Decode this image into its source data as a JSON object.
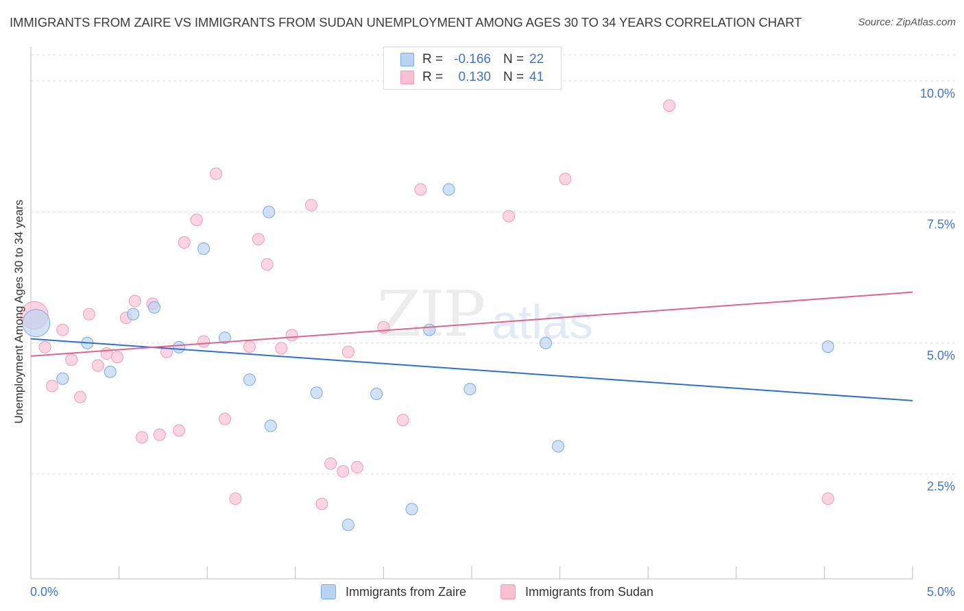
{
  "title": "IMMIGRANTS FROM ZAIRE VS IMMIGRANTS FROM SUDAN UNEMPLOYMENT AMONG AGES 30 TO 34 YEARS CORRELATION CHART",
  "source": "Source: ZipAtlas.com",
  "watermark": {
    "zip": "ZIP",
    "atlas": "atlas"
  },
  "legend": {
    "r_label": "R =",
    "n_label": "N =",
    "series": [
      {
        "name": "Immigrants from Zaire",
        "r": "-0.166",
        "n": "22"
      },
      {
        "name": "Immigrants from Sudan",
        "r": "0.130",
        "n": "41"
      }
    ]
  },
  "colors": {
    "zaire_fill": "#b8d3f3",
    "zaire_stroke": "#7aa8e0",
    "zaire_line": "#2d6fcf",
    "sudan_fill": "#f9c0d2",
    "sudan_stroke": "#ef9ab6",
    "sudan_line": "#e0628e",
    "axis_label": "#3f74c9",
    "grid": "#dddddd"
  },
  "chart_data": {
    "type": "scatter",
    "title": "IMMIGRANTS FROM ZAIRE VS IMMIGRANTS FROM SUDAN UNEMPLOYMENT AMONG AGES 30 TO 34 YEARS CORRELATION CHART",
    "xlabel": "",
    "ylabel": "Unemployment Among Ages 30 to 34 years",
    "xlim": [
      0,
      5.0
    ],
    "ylim": [
      0.5,
      10.5
    ],
    "x_tick_labels": [
      "0.0%",
      "5.0%"
    ],
    "y_ticks": [
      2.5,
      5.0,
      7.5,
      10.0
    ],
    "y_tick_labels": [
      "2.5%",
      "5.0%",
      "7.5%",
      "10.0%"
    ],
    "series": [
      {
        "name": "Immigrants from Zaire",
        "trend": [
          [
            0.0,
            5.08
          ],
          [
            5.0,
            3.9
          ]
        ],
        "points": [
          {
            "x": 0.03,
            "y": 5.38,
            "big": true
          },
          {
            "x": 0.18,
            "y": 4.32
          },
          {
            "x": 0.32,
            "y": 5.0
          },
          {
            "x": 0.45,
            "y": 4.45
          },
          {
            "x": 0.58,
            "y": 5.55
          },
          {
            "x": 0.7,
            "y": 5.68
          },
          {
            "x": 0.84,
            "y": 4.92
          },
          {
            "x": 0.98,
            "y": 6.8
          },
          {
            "x": 1.1,
            "y": 5.1
          },
          {
            "x": 1.24,
            "y": 4.3
          },
          {
            "x": 1.35,
            "y": 7.5
          },
          {
            "x": 1.36,
            "y": 3.42
          },
          {
            "x": 1.62,
            "y": 4.05
          },
          {
            "x": 1.8,
            "y": 1.53
          },
          {
            "x": 1.96,
            "y": 4.03
          },
          {
            "x": 2.16,
            "y": 1.83
          },
          {
            "x": 2.26,
            "y": 5.25
          },
          {
            "x": 2.37,
            "y": 7.93
          },
          {
            "x": 2.49,
            "y": 4.12
          },
          {
            "x": 2.92,
            "y": 5.0
          },
          {
            "x": 2.99,
            "y": 3.03
          },
          {
            "x": 4.52,
            "y": 4.93
          }
        ]
      },
      {
        "name": "Immigrants from Sudan",
        "trend": [
          [
            0.0,
            4.75
          ],
          [
            5.0,
            5.97
          ]
        ],
        "points": [
          {
            "x": 0.02,
            "y": 5.53,
            "big": true
          },
          {
            "x": 0.08,
            "y": 4.92
          },
          {
            "x": 0.12,
            "y": 4.18
          },
          {
            "x": 0.18,
            "y": 5.25
          },
          {
            "x": 0.23,
            "y": 4.68
          },
          {
            "x": 0.28,
            "y": 3.97
          },
          {
            "x": 0.33,
            "y": 5.55
          },
          {
            "x": 0.38,
            "y": 4.57
          },
          {
            "x": 0.43,
            "y": 4.8
          },
          {
            "x": 0.49,
            "y": 4.73
          },
          {
            "x": 0.54,
            "y": 5.48
          },
          {
            "x": 0.59,
            "y": 5.8
          },
          {
            "x": 0.63,
            "y": 3.2
          },
          {
            "x": 0.69,
            "y": 5.75
          },
          {
            "x": 0.73,
            "y": 3.25
          },
          {
            "x": 0.77,
            "y": 4.83
          },
          {
            "x": 0.84,
            "y": 3.33
          },
          {
            "x": 0.87,
            "y": 6.92
          },
          {
            "x": 0.94,
            "y": 7.35
          },
          {
            "x": 0.98,
            "y": 5.03
          },
          {
            "x": 1.05,
            "y": 8.23
          },
          {
            "x": 1.1,
            "y": 3.55
          },
          {
            "x": 1.16,
            "y": 2.03
          },
          {
            "x": 1.24,
            "y": 4.93
          },
          {
            "x": 1.29,
            "y": 6.98
          },
          {
            "x": 1.34,
            "y": 6.5
          },
          {
            "x": 1.42,
            "y": 4.9
          },
          {
            "x": 1.48,
            "y": 5.15
          },
          {
            "x": 1.59,
            "y": 7.63
          },
          {
            "x": 1.65,
            "y": 1.93
          },
          {
            "x": 1.7,
            "y": 2.7
          },
          {
            "x": 1.77,
            "y": 2.55
          },
          {
            "x": 1.8,
            "y": 4.83
          },
          {
            "x": 1.85,
            "y": 2.63
          },
          {
            "x": 2.0,
            "y": 5.3
          },
          {
            "x": 2.11,
            "y": 3.53
          },
          {
            "x": 2.21,
            "y": 7.93
          },
          {
            "x": 2.71,
            "y": 7.42
          },
          {
            "x": 3.03,
            "y": 8.13
          },
          {
            "x": 3.62,
            "y": 9.53
          },
          {
            "x": 4.52,
            "y": 2.03
          }
        ]
      }
    ]
  }
}
